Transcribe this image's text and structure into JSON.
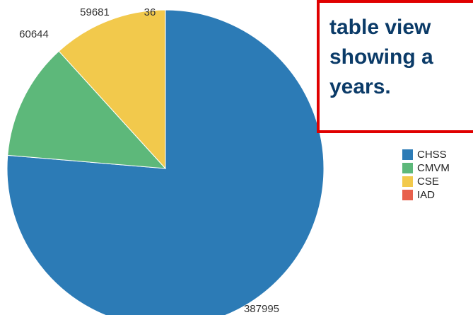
{
  "chart_data": {
    "type": "pie",
    "title": "",
    "legend_position": "right",
    "slices": [
      {
        "label": "CHSS",
        "value": 387995,
        "value_text": "387995",
        "color": "#2c7bb6"
      },
      {
        "label": "CMVM",
        "value": 60644,
        "value_text": "60644",
        "color": "#5db87a"
      },
      {
        "label": "CSE",
        "value": 59681,
        "value_text": "59681",
        "color": "#f2c94c"
      },
      {
        "label": "IAD",
        "value": 36,
        "value_text": "36",
        "color": "#e8604c"
      }
    ]
  },
  "callout": {
    "lines": [
      "table view",
      "showing a",
      "years."
    ],
    "border_color": "#e00000",
    "text_color": "#0b3b68"
  }
}
